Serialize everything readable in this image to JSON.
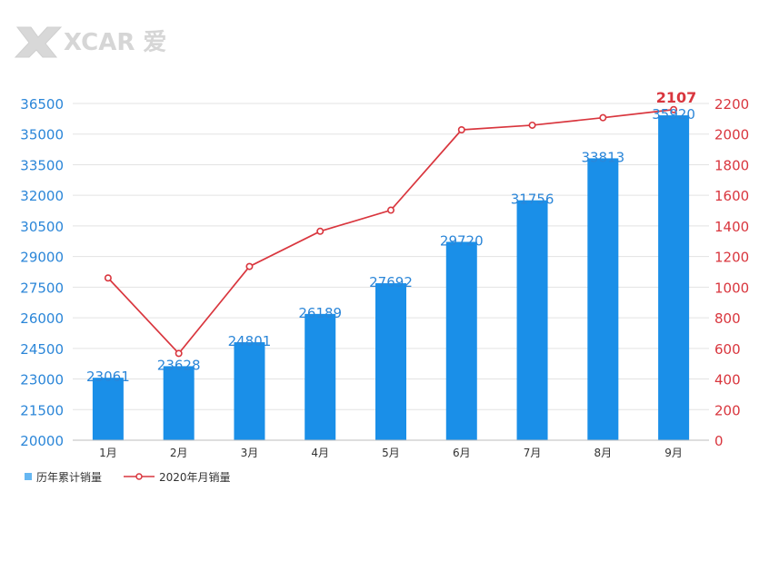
{
  "watermark": {
    "text": "XCAR 爱卡"
  },
  "colors": {
    "bar": "#1a8fe8",
    "line": "#d9363e",
    "left_axis": "#2b86d8",
    "right_axis": "#d9363e",
    "grid": "#e3e3e3"
  },
  "chart_data": {
    "type": "bar",
    "categories": [
      "1月",
      "2月",
      "3月",
      "4月",
      "5月",
      "6月",
      "7月",
      "8月",
      "9月"
    ],
    "series": [
      {
        "name": "历年累计销量",
        "type": "bar",
        "axis": "left",
        "values": [
          23061,
          23628,
          24801,
          26189,
          27692,
          29720,
          31756,
          33813,
          35920
        ]
      },
      {
        "name": "2020年月销量",
        "type": "line",
        "axis": "right",
        "values": [
          1060,
          567,
          1135,
          1365,
          1503,
          2028,
          2058,
          2107,
          2160
        ]
      }
    ],
    "left_axis": {
      "ylim": [
        20000,
        36500
      ],
      "ticks": [
        20000,
        21500,
        23000,
        24500,
        26000,
        27500,
        29000,
        30500,
        32000,
        33500,
        35000,
        36500
      ]
    },
    "right_axis": {
      "ylim": [
        0,
        2200
      ],
      "ticks": [
        0,
        200,
        400,
        600,
        800,
        1000,
        1200,
        1400,
        1600,
        1800,
        2000,
        2200
      ]
    },
    "highlight_label": "2107",
    "grid": true,
    "legend_position": "bottom-left"
  }
}
